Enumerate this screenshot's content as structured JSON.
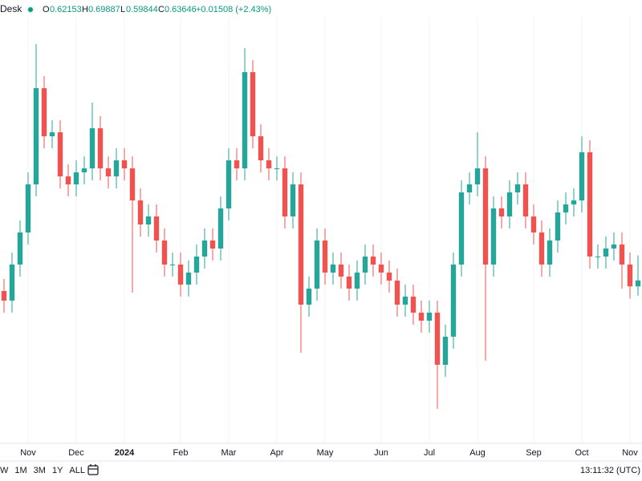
{
  "header": {
    "title": "Desk",
    "open_label": "O",
    "high_label": "H",
    "low_label": "L",
    "close_label": "C",
    "change": "+0.01508 (+2.43%)"
  },
  "toolbar": {
    "ranges": [
      "W",
      "1M",
      "3M",
      "1Y",
      "ALL"
    ],
    "time": "13:11:32 (UTC)"
  },
  "chart_data": {
    "type": "candlestick",
    "categories": [
      null,
      null,
      null,
      "Nov",
      null,
      null,
      null,
      null,
      null,
      "Dec",
      null,
      null,
      null,
      null,
      null,
      "2024",
      null,
      null,
      null,
      null,
      null,
      null,
      "Feb",
      null,
      null,
      null,
      null,
      null,
      "Mar",
      null,
      null,
      null,
      null,
      null,
      "Apr",
      null,
      null,
      null,
      null,
      null,
      "May",
      null,
      null,
      null,
      null,
      null,
      null,
      "Jun",
      null,
      null,
      null,
      null,
      null,
      "Jul",
      null,
      null,
      null,
      null,
      null,
      "Aug",
      null,
      null,
      null,
      null,
      null,
      null,
      "Sep",
      null,
      null,
      null,
      null,
      null,
      "Oct",
      null,
      null,
      null,
      null,
      null,
      "Nov",
      null
    ],
    "open": [
      0.61,
      0.586,
      0.676,
      0.756,
      0.876,
      1.116,
      0.996,
      1.006,
      0.896,
      0.876,
      0.906,
      0.916,
      1.016,
      0.916,
      0.896,
      0.936,
      0.916,
      0.836,
      0.776,
      0.796,
      0.736,
      0.676,
      0.676,
      0.626,
      0.656,
      0.696,
      0.736,
      0.716,
      0.816,
      0.936,
      0.916,
      1.156,
      0.996,
      0.936,
      0.916,
      0.916,
      0.796,
      0.876,
      0.576,
      0.616,
      0.736,
      0.656,
      0.676,
      0.646,
      0.616,
      0.656,
      0.696,
      0.676,
      0.656,
      0.636,
      0.576,
      0.596,
      0.556,
      0.536,
      0.556,
      0.426,
      0.496,
      0.676,
      0.856,
      0.876,
      0.916,
      0.676,
      0.816,
      0.796,
      0.856,
      0.876,
      0.796,
      0.756,
      0.676,
      0.736,
      0.806,
      0.826,
      0.836,
      0.956,
      0.696,
      0.696,
      0.716,
      0.726,
      0.676,
      0.62153
    ],
    "high": [
      0.64,
      0.706,
      0.786,
      0.906,
      1.226,
      1.146,
      1.036,
      1.036,
      0.926,
      0.936,
      0.946,
      1.08,
      1.046,
      0.946,
      0.966,
      0.966,
      0.946,
      0.866,
      0.826,
      0.826,
      0.766,
      0.706,
      0.706,
      0.686,
      0.726,
      0.766,
      0.766,
      0.846,
      0.966,
      0.966,
      1.216,
      1.186,
      1.026,
      0.966,
      0.946,
      0.946,
      0.906,
      0.906,
      0.646,
      0.766,
      0.766,
      0.706,
      0.706,
      0.676,
      0.686,
      0.726,
      0.726,
      0.706,
      0.686,
      0.666,
      0.626,
      0.626,
      0.586,
      0.586,
      0.586,
      0.526,
      0.706,
      0.886,
      0.906,
      1.006,
      0.946,
      0.846,
      0.846,
      0.886,
      0.906,
      0.906,
      0.826,
      0.786,
      0.766,
      0.836,
      0.856,
      0.866,
      0.996,
      0.986,
      0.726,
      0.746,
      0.756,
      0.756,
      0.706,
      0.69887
    ],
    "low": [
      0.556,
      0.556,
      0.646,
      0.726,
      0.846,
      0.966,
      0.966,
      0.866,
      0.846,
      0.846,
      0.876,
      0.886,
      0.886,
      0.866,
      0.866,
      0.886,
      0.606,
      0.746,
      0.746,
      0.706,
      0.646,
      0.646,
      0.596,
      0.596,
      0.626,
      0.666,
      0.686,
      0.686,
      0.786,
      0.886,
      0.886,
      0.966,
      0.906,
      0.886,
      0.886,
      0.766,
      0.766,
      0.456,
      0.546,
      0.586,
      0.626,
      0.626,
      0.616,
      0.586,
      0.586,
      0.626,
      0.646,
      0.626,
      0.606,
      0.546,
      0.546,
      0.526,
      0.506,
      0.506,
      0.316,
      0.396,
      0.466,
      0.646,
      0.826,
      0.846,
      0.436,
      0.646,
      0.766,
      0.766,
      0.826,
      0.766,
      0.726,
      0.646,
      0.646,
      0.706,
      0.776,
      0.796,
      0.806,
      0.666,
      0.666,
      0.666,
      0.686,
      0.616,
      0.591,
      0.59844
    ],
    "close": [
      0.586,
      0.676,
      0.756,
      0.876,
      1.116,
      0.996,
      1.006,
      0.896,
      0.876,
      0.906,
      0.916,
      1.016,
      0.916,
      0.896,
      0.936,
      0.916,
      0.836,
      0.776,
      0.796,
      0.736,
      0.676,
      0.676,
      0.626,
      0.656,
      0.696,
      0.736,
      0.716,
      0.816,
      0.936,
      0.916,
      1.156,
      0.996,
      0.936,
      0.916,
      0.916,
      0.796,
      0.876,
      0.576,
      0.616,
      0.736,
      0.656,
      0.676,
      0.646,
      0.616,
      0.656,
      0.696,
      0.676,
      0.656,
      0.636,
      0.576,
      0.596,
      0.556,
      0.536,
      0.556,
      0.426,
      0.496,
      0.676,
      0.856,
      0.876,
      0.916,
      0.676,
      0.816,
      0.796,
      0.856,
      0.876,
      0.796,
      0.756,
      0.676,
      0.736,
      0.806,
      0.826,
      0.836,
      0.956,
      0.696,
      0.696,
      0.716,
      0.726,
      0.676,
      0.62153,
      0.63646
    ],
    "up_color": "#26a69a",
    "down_color": "#ef5350",
    "ylim": [
      0.2,
      1.34
    ],
    "grid": true
  }
}
